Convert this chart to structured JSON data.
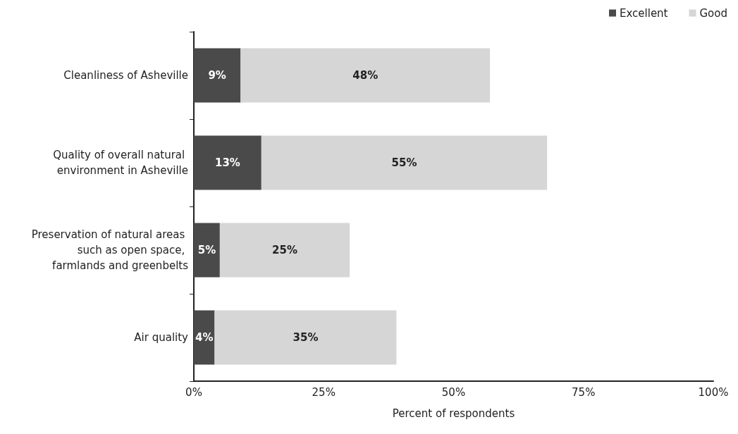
{
  "chart_data": {
    "type": "bar",
    "orientation": "horizontal",
    "stacked": true,
    "categories": [
      "Cleanliness of Asheville",
      "Quality of overall natural environment in Asheville",
      "Preservation of natural areas such as open space, farmlands and greenbelts",
      "Air quality"
    ],
    "series": [
      {
        "name": "Excellent",
        "color": "#4a4a4a",
        "values": [
          9,
          13,
          5,
          4
        ],
        "value_labels": [
          "9%",
          "13%",
          "5%",
          "4%"
        ]
      },
      {
        "name": "Good",
        "color": "#d6d6d6",
        "values": [
          48,
          55,
          25,
          35
        ],
        "value_labels": [
          "48%",
          "55%",
          "25%",
          "35%"
        ]
      }
    ],
    "xlabel": "Percent of respondents",
    "xlim": [
      0,
      100
    ],
    "xticks": [
      {
        "value": 0,
        "label": "0%"
      },
      {
        "value": 25,
        "label": "25%"
      },
      {
        "value": 50,
        "label": "50%"
      },
      {
        "value": 75,
        "label": "75%"
      },
      {
        "value": 100,
        "label": "100%"
      }
    ],
    "grid": false,
    "legend": "top right"
  }
}
